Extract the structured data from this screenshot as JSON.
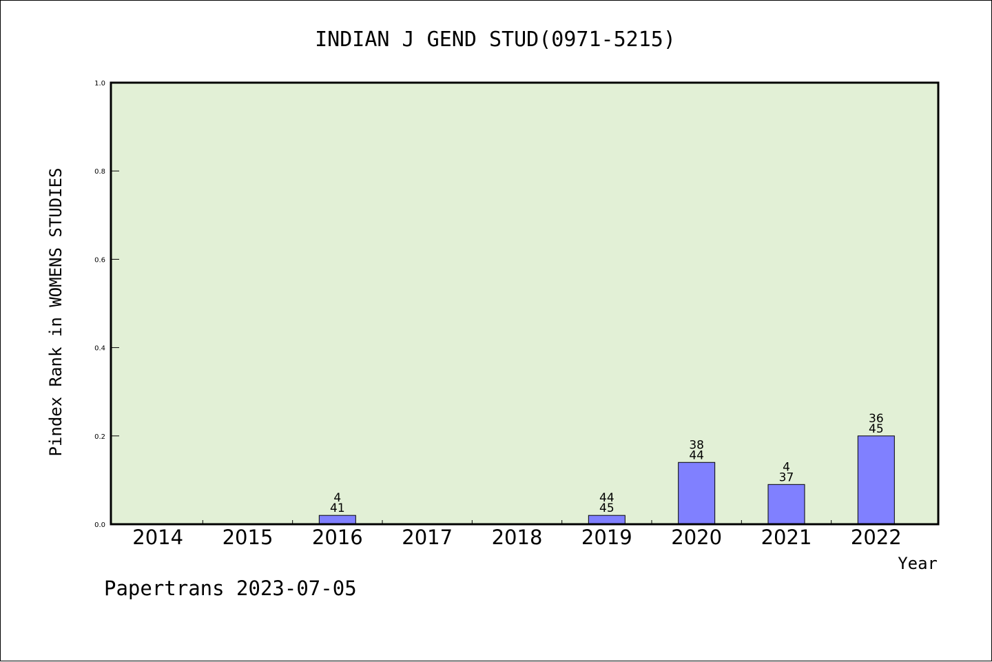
{
  "footer": "Papertrans 2023-07-05",
  "colors": {
    "plot_bg": "#e2f0d6",
    "bar": "#8080ff",
    "bar_stroke": "#000000",
    "axis": "#000000"
  },
  "chart_data": {
    "type": "bar",
    "title": "INDIAN J GEND STUD(0971-5215)",
    "xlabel": "Year",
    "ylabel": "Pindex Rank in WOMENS STUDIES",
    "ylim": [
      0,
      1.0
    ],
    "yticks": [
      "0.0",
      "0.2",
      "0.4",
      "0.6",
      "0.8",
      "1.0"
    ],
    "grid": false,
    "categories": [
      "2014",
      "2015",
      "2016",
      "2017",
      "2018",
      "2019",
      "2020",
      "2021",
      "2022"
    ],
    "values": [
      0,
      0,
      0.02,
      0,
      0,
      0.02,
      0.14,
      0.09,
      0.2
    ],
    "labels": [
      null,
      null,
      {
        "rank": "4",
        "total": "41"
      },
      null,
      null,
      {
        "rank": "44",
        "total": "45"
      },
      {
        "rank": "38",
        "total": "44"
      },
      {
        "rank": "4",
        "total": "37"
      },
      {
        "rank": "36",
        "total": "45"
      }
    ]
  }
}
